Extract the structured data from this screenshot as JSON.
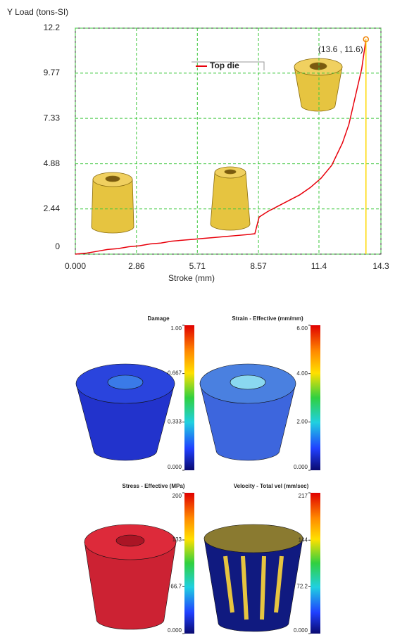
{
  "chart_data": {
    "type": "line",
    "title": "Y Load (tons-SI)",
    "x_label": "Stroke (mm)",
    "x": [
      0,
      0.5,
      1,
      1.5,
      2,
      2.5,
      3,
      3.5,
      4,
      4.5,
      5,
      5.5,
      6,
      6.5,
      7,
      7.5,
      8,
      8.4,
      8.6,
      9,
      9.5,
      10,
      10.5,
      11,
      11.5,
      12,
      12.5,
      12.8,
      13,
      13.2,
      13.4,
      13.5,
      13.6
    ],
    "series": [
      {
        "name": "Top die",
        "color": "#e8000b",
        "values": [
          0,
          0.05,
          0.15,
          0.25,
          0.3,
          0.4,
          0.45,
          0.55,
          0.6,
          0.7,
          0.75,
          0.8,
          0.85,
          0.9,
          0.95,
          1.0,
          1.05,
          1.1,
          2.0,
          2.3,
          2.6,
          2.9,
          3.2,
          3.6,
          4.1,
          4.8,
          6.0,
          7.0,
          8.0,
          9.0,
          10.0,
          10.8,
          11.6
        ]
      }
    ],
    "xlim": [
      0,
      14.3
    ],
    "xticks": [
      {
        "value": 0,
        "label": "0.000"
      },
      2.86,
      5.71,
      8.57,
      11.4,
      14.3
    ],
    "ylim": [
      0,
      12.2
    ],
    "yticks": [
      0,
      2.44,
      4.88,
      7.33,
      9.77,
      12.2
    ],
    "grid": true,
    "annotation": {
      "text": "(13.6 , 11.6)",
      "x": 13.6,
      "y": 11.6
    }
  },
  "contour_plots": {
    "panels": [
      {
        "title": "Damage",
        "lim": [
          0,
          1
        ],
        "ticks": [
          {
            "value": 1,
            "label": "1.00"
          },
          {
            "value": 0.667,
            "label": "0.667"
          },
          {
            "value": 0.333,
            "label": "0.333"
          },
          {
            "value": 0,
            "label": "0.000"
          }
        ]
      },
      {
        "title": "Strain - Effective (mm/mm)",
        "lim": [
          0,
          6
        ],
        "ticks": [
          {
            "value": 6,
            "label": "6.00"
          },
          {
            "value": 4,
            "label": "4.00"
          },
          {
            "value": 2,
            "label": "2.00"
          },
          {
            "value": 0,
            "label": "0.000"
          }
        ]
      },
      {
        "title": "Stress - Effective (MPa)",
        "lim": [
          0,
          200
        ],
        "ticks": [
          200,
          133,
          66.7,
          {
            "value": 0,
            "label": "0.000"
          }
        ]
      },
      {
        "title": "Velocity - Total vel (mm/sec)",
        "lim": [
          0,
          217
        ],
        "ticks": [
          217,
          144,
          72.2,
          {
            "value": 0,
            "label": "0.000"
          }
        ]
      }
    ]
  }
}
